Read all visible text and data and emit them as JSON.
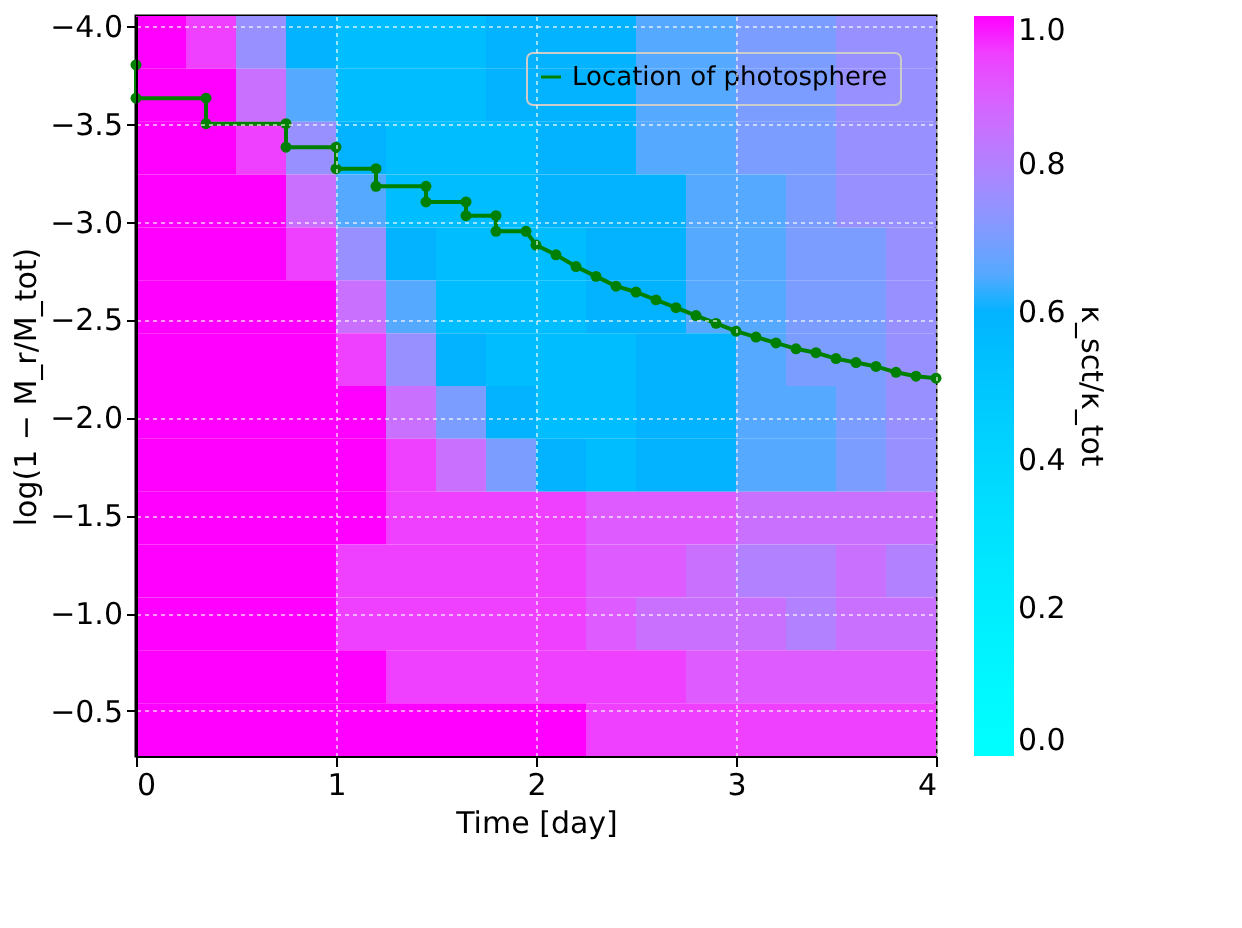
{
  "chart_data": {
    "type": "heatmap",
    "xlabel": "Time [day]",
    "ylabel": "log(1 − M_r/M_tot)",
    "clabel": "κ_sct/κ_tot",
    "xlim": [
      0,
      4
    ],
    "xticks": [
      0,
      1,
      2,
      3,
      4
    ],
    "ylim": [
      -0.27,
      -4.05
    ],
    "yticks": [
      {
        "value": -4.0,
        "label": "−4.0"
      },
      {
        "value": -3.5,
        "label": "−3.5"
      },
      {
        "value": -3.0,
        "label": "−3.0"
      },
      {
        "value": -2.5,
        "label": "−2.5"
      },
      {
        "value": -2.0,
        "label": "−2.0"
      },
      {
        "value": -1.5,
        "label": "−1.5"
      },
      {
        "value": -1.0,
        "label": "−1.0"
      },
      {
        "value": -0.5,
        "label": "−0.5"
      }
    ],
    "clim": [
      0,
      1
    ],
    "cticks": [
      {
        "value": 0,
        "label": "0.0"
      },
      {
        "value": 0.2,
        "label": "0.2"
      },
      {
        "value": 0.4,
        "label": "0.4"
      },
      {
        "value": 0.6,
        "label": "0.6"
      },
      {
        "value": 0.8,
        "label": "0.8"
      },
      {
        "value": 1,
        "label": "1.0"
      }
    ],
    "x": [
      0.125,
      0.375,
      0.625,
      0.875,
      1.125,
      1.375,
      1.625,
      1.875,
      2.125,
      2.375,
      2.625,
      2.875,
      3.125,
      3.375,
      3.625,
      3.875
    ],
    "y": [
      -3.915,
      -3.645,
      -3.375,
      -3.105,
      -2.835,
      -2.565,
      -2.295,
      -2.025,
      -1.755,
      -1.485,
      -1.215,
      -0.945,
      -0.675,
      -0.405
    ],
    "cells": [
      [
        1,
        0.95,
        0.75,
        0.6,
        0.55,
        0.55,
        0.55,
        0.6,
        0.6,
        0.6,
        0.65,
        0.65,
        0.7,
        0.7,
        0.75,
        0.75
      ],
      [
        1,
        1,
        0.85,
        0.65,
        0.55,
        0.55,
        0.55,
        0.6,
        0.6,
        0.6,
        0.65,
        0.65,
        0.7,
        0.7,
        0.75,
        0.75
      ],
      [
        1,
        1,
        0.95,
        0.75,
        0.6,
        0.55,
        0.55,
        0.55,
        0.6,
        0.6,
        0.65,
        0.65,
        0.7,
        0.7,
        0.75,
        0.75
      ],
      [
        1,
        1,
        1,
        0.85,
        0.65,
        0.55,
        0.55,
        0.55,
        0.6,
        0.6,
        0.6,
        0.65,
        0.65,
        0.7,
        0.75,
        0.75
      ],
      [
        1,
        1,
        1,
        0.95,
        0.75,
        0.6,
        0.55,
        0.55,
        0.55,
        0.6,
        0.6,
        0.65,
        0.65,
        0.7,
        0.7,
        0.75
      ],
      [
        1,
        1,
        1,
        1,
        0.85,
        0.65,
        0.55,
        0.55,
        0.55,
        0.6,
        0.6,
        0.65,
        0.65,
        0.7,
        0.7,
        0.75
      ],
      [
        1,
        1,
        1,
        1,
        0.95,
        0.75,
        0.6,
        0.55,
        0.55,
        0.55,
        0.6,
        0.6,
        0.65,
        0.7,
        0.7,
        0.75
      ],
      [
        1,
        1,
        1,
        1,
        1,
        0.85,
        0.7,
        0.6,
        0.55,
        0.55,
        0.6,
        0.6,
        0.65,
        0.65,
        0.7,
        0.75
      ],
      [
        1,
        1,
        1,
        1,
        1,
        0.95,
        0.85,
        0.7,
        0.6,
        0.55,
        0.6,
        0.6,
        0.65,
        0.65,
        0.7,
        0.75
      ],
      [
        1,
        1,
        1,
        1,
        1,
        0.95,
        0.95,
        0.95,
        0.95,
        0.9,
        0.9,
        0.9,
        0.85,
        0.85,
        0.85,
        0.85
      ],
      [
        1,
        1,
        1,
        1,
        0.95,
        0.95,
        0.95,
        0.95,
        0.95,
        0.9,
        0.9,
        0.85,
        0.8,
        0.8,
        0.85,
        0.8
      ],
      [
        1,
        1,
        1,
        1,
        0.95,
        0.95,
        0.95,
        0.95,
        0.95,
        0.9,
        0.85,
        0.85,
        0.85,
        0.8,
        0.85,
        0.85
      ],
      [
        1,
        1,
        1,
        1,
        1,
        0.95,
        0.95,
        0.95,
        0.95,
        0.95,
        0.95,
        0.9,
        0.9,
        0.9,
        0.9,
        0.9
      ],
      [
        1,
        1,
        1,
        1,
        1,
        1,
        1,
        1,
        1,
        0.95,
        0.95,
        0.95,
        0.95,
        0.95,
        0.95,
        0.95
      ]
    ],
    "series": [
      {
        "name": "Location of photosphere",
        "type": "line",
        "color": "#008000",
        "marker": "circle",
        "line_style": "solid",
        "x": [
          0,
          0,
          0.35,
          0.35,
          0.75,
          0.75,
          1.0,
          1.0,
          1.2,
          1.2,
          1.45,
          1.45,
          1.65,
          1.65,
          1.8,
          1.8,
          1.95,
          2.0,
          2.1,
          2.2,
          2.3,
          2.4,
          2.5,
          2.6,
          2.7,
          2.8,
          2.9,
          3.0,
          3.1,
          3.2,
          3.3,
          3.4,
          3.5,
          3.6,
          3.7,
          3.8,
          3.9,
          4.0
        ],
        "values": [
          -3.8,
          -3.63,
          -3.63,
          -3.5,
          -3.5,
          -3.38,
          -3.38,
          -3.27,
          -3.27,
          -3.18,
          -3.18,
          -3.1,
          -3.1,
          -3.03,
          -3.03,
          -2.95,
          -2.95,
          -2.88,
          -2.83,
          -2.77,
          -2.72,
          -2.67,
          -2.64,
          -2.6,
          -2.56,
          -2.52,
          -2.48,
          -2.44,
          -2.41,
          -2.38,
          -2.35,
          -2.33,
          -2.3,
          -2.28,
          -2.26,
          -2.23,
          -2.21,
          -2.2
        ]
      }
    ],
    "legend": "top right",
    "grid": true
  }
}
